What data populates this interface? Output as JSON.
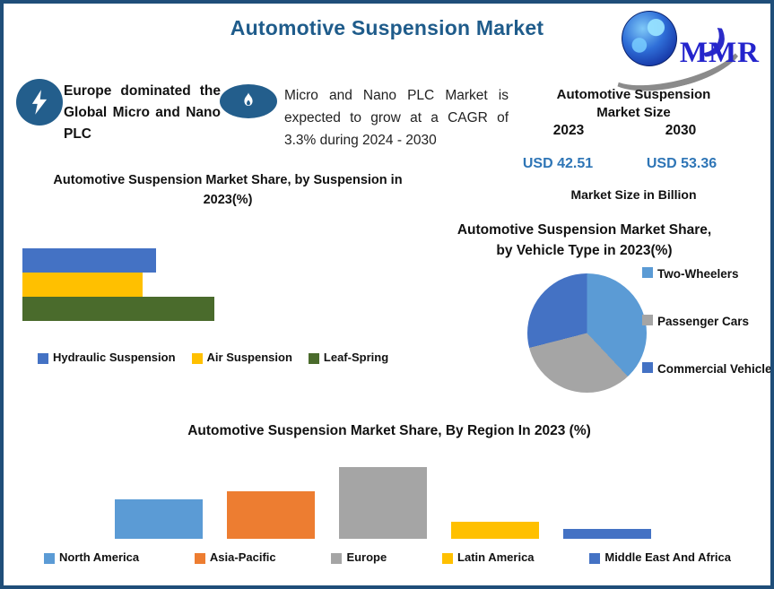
{
  "page": {
    "title": "Automotive Suspension Market",
    "title_color": "#1F5C8B",
    "border_color": "#1F4E79",
    "accent_blue": "#235E8C"
  },
  "logo": {
    "text": "MMR"
  },
  "callouts": [
    {
      "icon": "lightning-icon",
      "text": "Europe dominated the Global Micro and Nano PLC"
    },
    {
      "icon": "flame-icon",
      "text": "Micro and Nano PLC Market is expected to grow at a CAGR of 3.3% during 2024 - 2030"
    }
  ],
  "market_size": {
    "title_line1": "Automotive Suspension",
    "title_line2": "Market Size",
    "year_start": "2023",
    "year_end": "2030",
    "value_start": "USD 42.51",
    "value_end": "USD 53.36",
    "value_color": "#2E75B6",
    "caption": "Market Size in Billion"
  },
  "chart_data": [
    {
      "type": "bar",
      "orientation": "horizontal",
      "title": "Automotive Suspension Market Share, by Suspension in 2023(%)",
      "categories": [
        "Hydraulic Suspension",
        "Air Suspension",
        "Leaf-Spring"
      ],
      "values": [
        30,
        27,
        43
      ],
      "unit": "%",
      "colors": [
        "#4472C4",
        "#FFC000",
        "#4A6B2C"
      ],
      "axes_visible": false,
      "legend_position": "bottom"
    },
    {
      "type": "pie",
      "title": "Automotive Suspension Market Share, by Vehicle Type in 2023(%)",
      "categories": [
        "Two-Wheelers",
        "Passenger Cars",
        "Commercial Vehicle"
      ],
      "values": [
        38,
        33,
        29
      ],
      "unit": "%",
      "colors": [
        "#5B9BD5",
        "#A5A5A5",
        "#4472C4"
      ],
      "start_angle_deg": 0,
      "legend_position": "right"
    },
    {
      "type": "bar",
      "orientation": "vertical",
      "title": "Automotive Suspension Market Share, By Region In 2023 (%)",
      "categories": [
        "North America",
        "Asia-Pacific",
        "Europe",
        "Latin America",
        "Middle East And Africa"
      ],
      "values": [
        21,
        25,
        38,
        9,
        5
      ],
      "unit": "%",
      "colors": [
        "#5B9BD5",
        "#ED7D31",
        "#A5A5A5",
        "#FFC000",
        "#4472C4"
      ],
      "axes_visible": false,
      "legend_position": "bottom"
    }
  ]
}
